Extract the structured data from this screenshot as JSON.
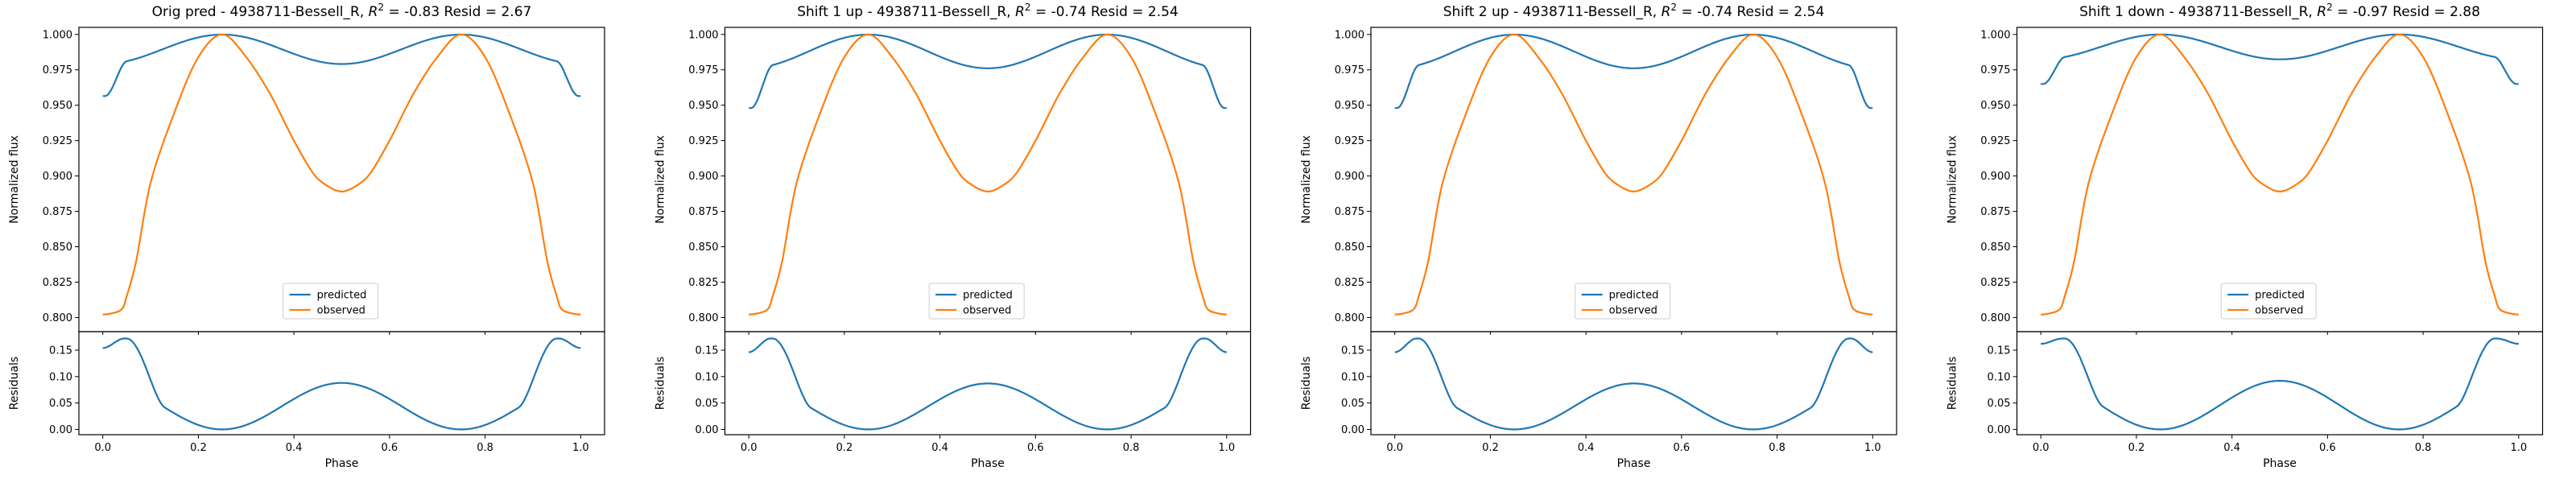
{
  "chart_data": [
    {
      "type": "line",
      "title": "Orig pred - 4938711-Bessell_R, $R^2$ = -0.83 Resid = 2.67",
      "title_parts": [
        "Orig pred - 4938711-Bessell_R, ",
        "R",
        "2",
        " = -0.83 Resid = 2.67"
      ],
      "xlabel": "Phase",
      "ylabel": "Normalized flux",
      "resid_ylabel": "Residuals",
      "xlim": [
        -0.05,
        1.05
      ],
      "ylim": [
        0.79,
        1.005
      ],
      "resid_ylim": [
        -0.01,
        0.185
      ],
      "x_ticks": [
        "0.0",
        "0.2",
        "0.4",
        "0.6",
        "0.8",
        "1.0"
      ],
      "y_ticks": [
        "0.800",
        "0.825",
        "0.850",
        "0.875",
        "0.900",
        "0.925",
        "0.950",
        "0.975",
        "1.000"
      ],
      "resid_ticks": [
        "0.00",
        "0.05",
        "0.10",
        "0.15"
      ],
      "legend": {
        "position": "lower-center",
        "entries": [
          "predicted",
          "observed"
        ]
      },
      "predicted": {
        "A": 0.0104,
        "C": 0.9895,
        "edge": 0.9565,
        "dip": 0.0
      },
      "residual_line": {
        "edge": 0.154,
        "top": 0.172,
        "mid": 0.088
      }
    },
    {
      "type": "line",
      "title": "Shift 1 up - 4938711-Bessell_R, $R^2$ = -0.74 Resid = 2.54",
      "title_parts": [
        "Shift 1 up - 4938711-Bessell_R, ",
        "R",
        "2",
        " = -0.74 Resid = 2.54"
      ],
      "xlabel": "Phase",
      "ylabel": "Normalized flux",
      "resid_ylabel": "Residuals",
      "xlim": [
        -0.05,
        1.05
      ],
      "ylim": [
        0.79,
        1.005
      ],
      "resid_ylim": [
        -0.01,
        0.185
      ],
      "x_ticks": [
        "0.0",
        "0.2",
        "0.4",
        "0.6",
        "0.8",
        "1.0"
      ],
      "y_ticks": [
        "0.800",
        "0.825",
        "0.850",
        "0.875",
        "0.900",
        "0.925",
        "0.950",
        "0.975",
        "1.000"
      ],
      "resid_ticks": [
        "0.00",
        "0.05",
        "0.10",
        "0.15"
      ],
      "legend": {
        "position": "lower-center",
        "entries": [
          "predicted",
          "observed"
        ]
      },
      "predicted": {
        "A": 0.0119,
        "C": 0.988,
        "edge": 0.948,
        "dip": 0.0
      },
      "residual_line": {
        "edge": 0.146,
        "top": 0.172,
        "mid": 0.087
      }
    },
    {
      "type": "line",
      "title": "Shift 2 up - 4938711-Bessell_R, $R^2$ = -0.74 Resid = 2.54",
      "title_parts": [
        "Shift 2 up - 4938711-Bessell_R, ",
        "R",
        "2",
        " = -0.74 Resid = 2.54"
      ],
      "xlabel": "Phase",
      "ylabel": "Normalized flux",
      "resid_ylabel": "Residuals",
      "xlim": [
        -0.05,
        1.05
      ],
      "ylim": [
        0.79,
        1.005
      ],
      "resid_ylim": [
        -0.01,
        0.185
      ],
      "x_ticks": [
        "0.0",
        "0.2",
        "0.4",
        "0.6",
        "0.8",
        "1.0"
      ],
      "y_ticks": [
        "0.800",
        "0.825",
        "0.850",
        "0.875",
        "0.900",
        "0.925",
        "0.950",
        "0.975",
        "1.000"
      ],
      "resid_ticks": [
        "0.00",
        "0.05",
        "0.10",
        "0.15"
      ],
      "legend": {
        "position": "lower-center",
        "entries": [
          "predicted",
          "observed"
        ]
      },
      "predicted": {
        "A": 0.0119,
        "C": 0.988,
        "edge": 0.948,
        "dip": 0.0
      },
      "residual_line": {
        "edge": 0.146,
        "top": 0.172,
        "mid": 0.087
      }
    },
    {
      "type": "line",
      "title": "Shift 1 down - 4938711-Bessell_R, $R^2$ = -0.97 Resid = 2.88",
      "title_parts": [
        "Shift 1 down - 4938711-Bessell_R, ",
        "R",
        "2",
        " = -0.97 Resid = 2.88"
      ],
      "xlabel": "Phase",
      "ylabel": "Normalized flux",
      "resid_ylabel": "Residuals",
      "xlim": [
        -0.05,
        1.05
      ],
      "ylim": [
        0.79,
        1.005
      ],
      "resid_ylim": [
        -0.01,
        0.185
      ],
      "x_ticks": [
        "0.0",
        "0.2",
        "0.4",
        "0.6",
        "0.8",
        "1.0"
      ],
      "y_ticks": [
        "0.800",
        "0.825",
        "0.850",
        "0.875",
        "0.900",
        "0.925",
        "0.950",
        "0.975",
        "1.000"
      ],
      "resid_ticks": [
        "0.00",
        "0.05",
        "0.10",
        "0.15"
      ],
      "legend": {
        "position": "lower-center",
        "entries": [
          "predicted",
          "observed"
        ]
      },
      "predicted": {
        "A": 0.0088,
        "C": 0.9912,
        "edge": 0.965,
        "dip": 0.0
      },
      "residual_line": {
        "edge": 0.162,
        "top": 0.172,
        "mid": 0.092
      }
    }
  ],
  "observed_series": {
    "x": [
      0.0,
      0.02,
      0.04,
      0.05,
      0.07,
      0.1,
      0.15,
      0.2,
      0.25,
      0.3,
      0.35,
      0.4,
      0.44,
      0.47,
      0.5,
      0.53,
      0.56,
      0.6,
      0.65,
      0.7,
      0.75,
      0.8,
      0.85,
      0.9,
      0.93,
      0.95,
      0.96,
      0.98,
      1.0
    ],
    "y": [
      0.802,
      0.803,
      0.806,
      0.815,
      0.84,
      0.895,
      0.945,
      0.984,
      1.0,
      0.984,
      0.958,
      0.925,
      0.902,
      0.893,
      0.889,
      0.893,
      0.902,
      0.925,
      0.958,
      0.984,
      1.0,
      0.984,
      0.945,
      0.895,
      0.84,
      0.815,
      0.806,
      0.803,
      0.802
    ]
  },
  "colors": {
    "predicted": "#1f77b4",
    "observed": "#ff7f0e",
    "axes": "#000000"
  }
}
